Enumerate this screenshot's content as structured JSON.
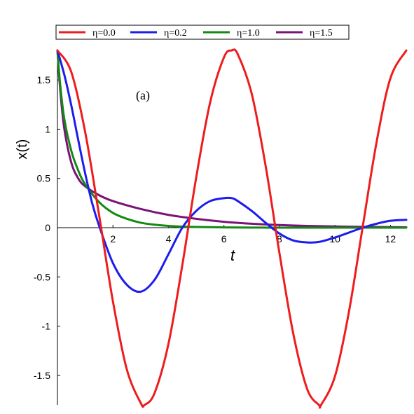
{
  "chart_data": {
    "type": "line",
    "xlabel": "t",
    "ylabel": "x(t)",
    "annotation": "(a)",
    "xlim": [
      0,
      12.57
    ],
    "ylim": [
      -1.8,
      1.8
    ],
    "x_ticks": [
      2,
      4,
      6,
      8,
      10,
      12
    ],
    "y_ticks": [
      -1.5,
      -1,
      -0.5,
      0,
      0.5,
      1,
      1.5
    ],
    "y_tick_labels": [
      "-1.5",
      "-1",
      "-0.5",
      "0",
      "0.5",
      "1",
      "1.5"
    ],
    "legend_position": "top",
    "series": [
      {
        "name": "η=0.0",
        "color": "#ee1c1c",
        "x": [
          0,
          0.5,
          1,
          1.5,
          2,
          2.5,
          3,
          3.14,
          3.5,
          4,
          4.5,
          5,
          5.5,
          6,
          6.28,
          6.5,
          7,
          7.5,
          8,
          8.5,
          9,
          9.42,
          9.5,
          10,
          10.5,
          11,
          11.5,
          12,
          12.57
        ],
        "y": [
          1.8,
          1.58,
          0.97,
          0.13,
          -0.75,
          -1.44,
          -1.78,
          -1.8,
          -1.68,
          -1.18,
          -0.38,
          0.51,
          1.27,
          1.73,
          1.8,
          1.76,
          1.36,
          0.63,
          -0.26,
          -1.08,
          -1.64,
          -1.8,
          -1.8,
          -1.51,
          -0.86,
          0.01,
          0.87,
          1.52,
          1.8
        ]
      },
      {
        "name": "η=0.2",
        "color": "#1c1cee",
        "x": [
          0,
          0.25,
          0.5,
          0.75,
          1,
          1.25,
          1.5,
          2,
          2.5,
          3,
          3.5,
          4,
          4.5,
          5,
          5.5,
          6,
          6.28,
          6.5,
          7,
          7.5,
          8,
          8.5,
          9,
          9.42,
          10,
          10.5,
          11,
          11.5,
          12,
          12.57
        ],
        "y": [
          1.8,
          1.55,
          1.24,
          0.89,
          0.55,
          0.25,
          0.02,
          -0.36,
          -0.58,
          -0.65,
          -0.53,
          -0.27,
          0.0,
          0.17,
          0.27,
          0.3,
          0.3,
          0.27,
          0.17,
          0.05,
          -0.06,
          -0.13,
          -0.15,
          -0.145,
          -0.1,
          -0.05,
          0.0,
          0.04,
          0.07,
          0.08
        ]
      },
      {
        "name": "η=1.0",
        "color": "#138a13",
        "x": [
          0,
          0.1,
          0.25,
          0.5,
          0.75,
          1,
          1.5,
          2,
          2.5,
          3,
          3.5,
          4,
          4.5,
          5,
          6,
          7,
          8,
          10,
          12.57
        ],
        "y": [
          1.8,
          1.45,
          1.1,
          0.78,
          0.58,
          0.44,
          0.26,
          0.15,
          0.09,
          0.05,
          0.03,
          0.018,
          0.011,
          0.007,
          0.003,
          0.001,
          0.0,
          0.0,
          0.0
        ]
      },
      {
        "name": "η=1.5",
        "color": "#7a137a",
        "x": [
          0,
          0.1,
          0.25,
          0.5,
          0.75,
          1,
          1.5,
          2,
          3,
          4,
          5,
          6,
          7,
          8,
          9,
          10,
          11,
          12.57
        ],
        "y": [
          1.8,
          1.4,
          1.0,
          0.66,
          0.5,
          0.42,
          0.33,
          0.27,
          0.19,
          0.13,
          0.09,
          0.06,
          0.04,
          0.027,
          0.018,
          0.012,
          0.008,
          0.004
        ]
      }
    ]
  }
}
